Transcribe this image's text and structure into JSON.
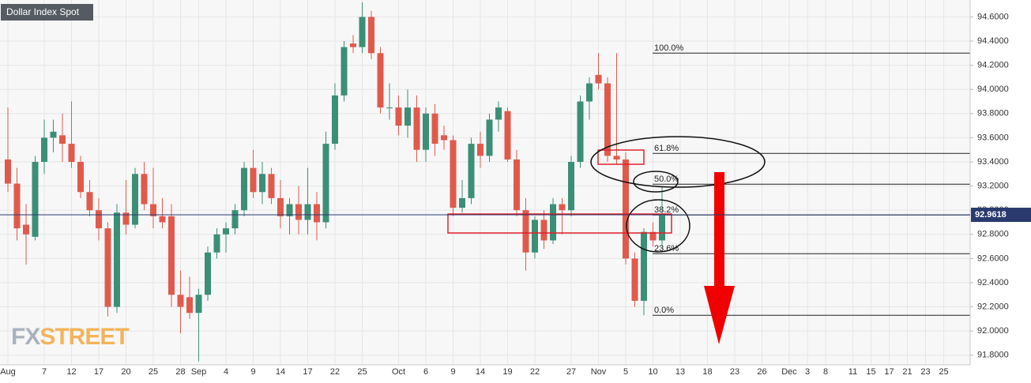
{
  "chart_data": {
    "type": "candlestick",
    "title": "Dollar Index Spot",
    "watermark": {
      "fx": "FX",
      "street": "STREET"
    },
    "categories": [
      "Aug",
      null,
      null,
      null,
      "7",
      null,
      null,
      "12",
      null,
      null,
      "17",
      null,
      null,
      "20",
      null,
      null,
      "25",
      null,
      null,
      "28",
      null,
      "Sep",
      null,
      null,
      "4",
      null,
      null,
      "9",
      null,
      null,
      "14",
      null,
      null,
      "17",
      null,
      null,
      "22",
      null,
      null,
      "25",
      null,
      null,
      null,
      "Oct",
      null,
      null,
      "6",
      null,
      null,
      "9",
      null,
      null,
      "14",
      null,
      null,
      "19",
      null,
      null,
      "22",
      null,
      null,
      null,
      "27",
      null,
      null,
      "Nov",
      null,
      null,
      "5",
      null,
      null,
      "10",
      null,
      null,
      "13",
      null,
      null,
      "18",
      null,
      null,
      "23",
      null,
      null,
      "26",
      null,
      null,
      "Dec",
      null,
      "3",
      null,
      "8",
      null,
      null,
      "11",
      null,
      "15",
      null,
      "17",
      null,
      "21",
      null,
      "23",
      null,
      "25",
      null
    ],
    "open": [
      93.42,
      93.22,
      92.88,
      92.78,
      93.4,
      93.6,
      93.62,
      93.55,
      93.4,
      93.15,
      93.0,
      92.85,
      92.2,
      92.98,
      92.88,
      93.3,
      93.05,
      92.95,
      92.95,
      92.3,
      92.28,
      92.15,
      92.3,
      92.65,
      92.8,
      92.85,
      93.0,
      93.35,
      93.15,
      93.3,
      93.1,
      92.95,
      93.05,
      92.92,
      93.05,
      92.9,
      93.55,
      93.95,
      94.38,
      94.35,
      94.6,
      94.3,
      93.85,
      93.85,
      93.7,
      93.85,
      93.5,
      93.8,
      93.62,
      93.58,
      93.02,
      93.1,
      93.55,
      93.45,
      93.75,
      93.82,
      93.42,
      93.0,
      92.65,
      92.92,
      92.75,
      93.05,
      93.0,
      93.4,
      93.9,
      94.12,
      94.05,
      93.45,
      93.42,
      92.6,
      92.25,
      92.82,
      92.75,
      null,
      null,
      null,
      null,
      null,
      null,
      null,
      null,
      null,
      null,
      null,
      null,
      null,
      null,
      null,
      null,
      null,
      null,
      null,
      null,
      null,
      null,
      null,
      null,
      null,
      null,
      null,
      null,
      null,
      null,
      null,
      null
    ],
    "high": [
      93.85,
      93.35,
      93.05,
      93.45,
      93.75,
      93.75,
      93.8,
      93.9,
      93.45,
      93.25,
      93.1,
      92.9,
      93.05,
      93.25,
      93.35,
      93.4,
      93.35,
      93.1,
      93.05,
      92.5,
      92.45,
      92.35,
      92.7,
      92.85,
      92.9,
      93.05,
      93.4,
      93.5,
      93.4,
      93.35,
      93.25,
      93.1,
      93.2,
      93.35,
      93.15,
      93.65,
      94.05,
      94.4,
      94.45,
      94.72,
      94.65,
      94.35,
      94.05,
      93.95,
      94.0,
      93.95,
      93.85,
      93.88,
      93.7,
      93.62,
      93.25,
      93.6,
      93.65,
      93.8,
      93.9,
      93.85,
      93.5,
      93.1,
      92.95,
      93.0,
      93.1,
      93.1,
      93.45,
      93.95,
      94.1,
      94.3,
      94.1,
      94.3,
      93.48,
      92.65,
      92.85,
      92.9,
      93.2,
      null,
      null,
      null,
      null,
      null,
      null,
      null,
      null,
      null,
      null,
      null,
      null,
      null,
      null,
      null,
      null,
      null,
      null,
      null,
      null,
      null,
      null,
      null,
      null,
      null,
      null,
      null,
      null,
      null,
      null,
      null,
      null
    ],
    "low": [
      93.15,
      92.75,
      92.55,
      92.75,
      93.3,
      93.48,
      93.4,
      93.35,
      93.1,
      92.95,
      92.75,
      92.12,
      92.15,
      92.8,
      92.85,
      93.0,
      92.85,
      92.85,
      92.2,
      91.98,
      92.1,
      91.75,
      92.25,
      92.6,
      92.65,
      92.8,
      92.95,
      93.1,
      93.05,
      93.05,
      92.85,
      92.8,
      92.8,
      92.8,
      92.75,
      92.85,
      93.5,
      93.9,
      94.3,
      94.3,
      94.25,
      93.8,
      93.75,
      93.62,
      93.6,
      93.4,
      93.4,
      93.45,
      93.5,
      92.95,
      92.98,
      93.05,
      93.35,
      93.4,
      93.65,
      93.4,
      92.95,
      92.5,
      92.6,
      92.68,
      92.72,
      92.8,
      92.95,
      93.35,
      93.75,
      94.0,
      93.4,
      93.38,
      92.55,
      92.2,
      92.13,
      92.7,
      92.7,
      null,
      null,
      null,
      null,
      null,
      null,
      null,
      null,
      null,
      null,
      null,
      null,
      null,
      null,
      null,
      null,
      null,
      null,
      null,
      null,
      null,
      null,
      null,
      null,
      null,
      null,
      null,
      null,
      null,
      null,
      null,
      null
    ],
    "close": [
      93.22,
      92.85,
      92.8,
      93.4,
      93.6,
      93.65,
      93.55,
      93.4,
      93.15,
      93.0,
      92.85,
      92.2,
      92.98,
      92.88,
      93.3,
      93.05,
      92.95,
      92.9,
      92.3,
      92.2,
      92.15,
      92.3,
      92.65,
      92.8,
      92.85,
      93.0,
      93.35,
      93.15,
      93.3,
      93.1,
      92.95,
      93.05,
      92.92,
      93.05,
      92.9,
      93.55,
      93.95,
      94.35,
      94.35,
      94.6,
      94.3,
      93.85,
      93.85,
      93.7,
      93.85,
      93.5,
      93.8,
      93.55,
      93.58,
      93.02,
      93.1,
      93.55,
      93.45,
      93.75,
      93.85,
      93.42,
      93.0,
      92.65,
      92.92,
      92.75,
      93.05,
      93.0,
      93.4,
      93.9,
      94.05,
      94.05,
      93.45,
      93.42,
      92.6,
      92.25,
      92.82,
      92.75,
      92.96,
      null,
      null,
      null,
      null,
      null,
      null,
      null,
      null,
      null,
      null,
      null,
      null,
      null,
      null,
      null,
      null,
      null,
      null,
      null,
      null,
      null,
      null,
      null,
      null,
      null,
      null,
      null,
      null,
      null,
      null,
      null,
      null
    ],
    "up_color": "#3b8f76",
    "down_color": "#e05a4c",
    "ylim": [
      91.72,
      94.74
    ],
    "yticks": [
      {
        "value": 91.8,
        "label": "91.8000"
      },
      {
        "value": 92.0,
        "label": "92.0000"
      },
      {
        "value": 92.2,
        "label": "92.2000"
      },
      {
        "value": 92.4,
        "label": "92.4000"
      },
      {
        "value": 92.6,
        "label": "92.6000"
      },
      {
        "value": 92.8,
        "label": "92.8000"
      },
      {
        "value": 93.0,
        "label": "93.0000"
      },
      {
        "value": 93.2,
        "label": "93.2000"
      },
      {
        "value": 93.4,
        "label": "93.4000"
      },
      {
        "value": 93.6,
        "label": "93.6000"
      },
      {
        "value": 93.8,
        "label": "93.8000"
      },
      {
        "value": 94.0,
        "label": "94.0000"
      },
      {
        "value": 94.2,
        "label": "94.2000"
      },
      {
        "value": 94.4,
        "label": "94.4000"
      },
      {
        "value": 94.6,
        "label": "94.6000"
      }
    ],
    "grid": true,
    "last_price": 92.9618,
    "last_price_color": "#2a3a6e",
    "fib_levels": [
      {
        "label": "100.0%",
        "value": 94.3
      },
      {
        "label": "61.8%",
        "value": 93.47
      },
      {
        "label": "50.0%",
        "value": 93.215
      },
      {
        "label": "38.2%",
        "value": 92.96
      },
      {
        "label": "23.6%",
        "value": 92.64
      },
      {
        "label": "0.0%",
        "value": 92.13
      }
    ]
  }
}
